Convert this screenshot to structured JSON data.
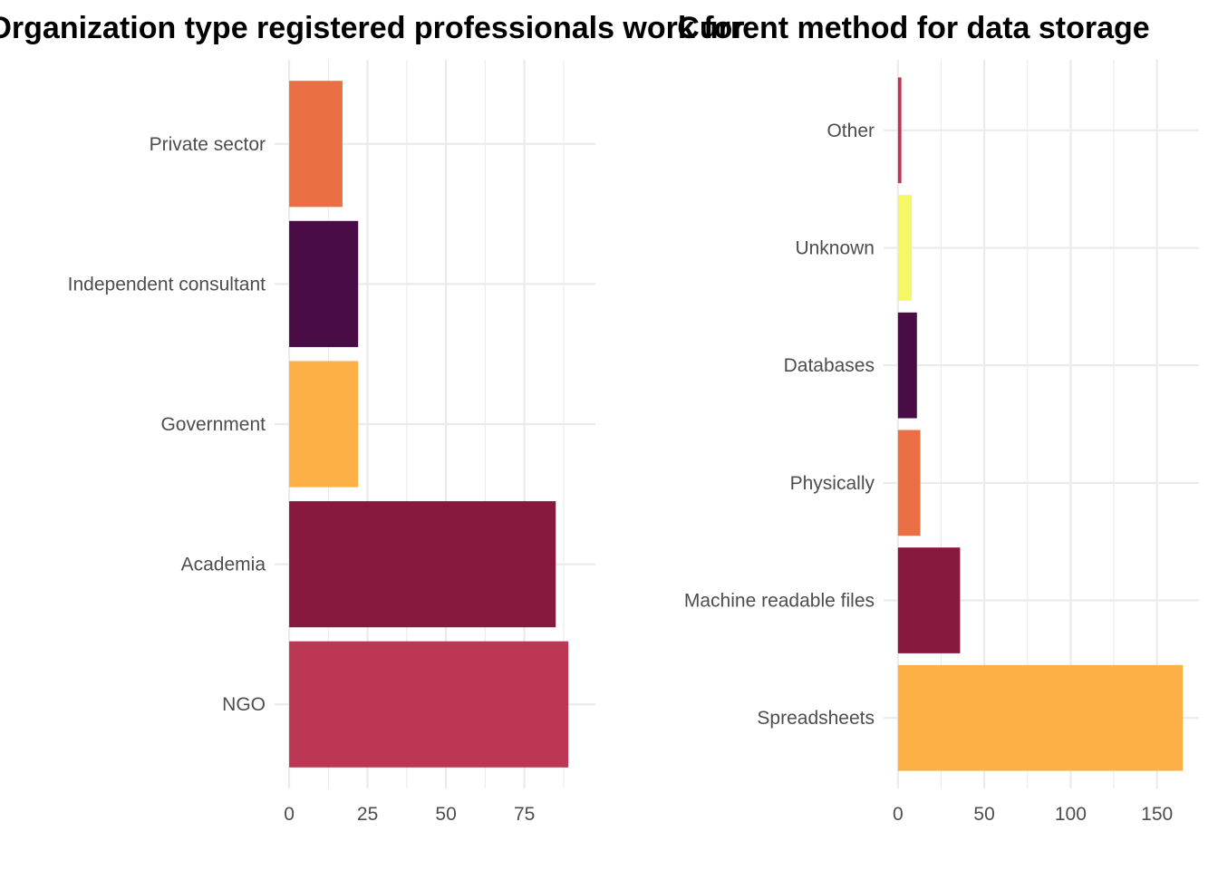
{
  "chart_data": [
    {
      "type": "bar",
      "orientation": "horizontal",
      "title": "Organization type registered professionals work for",
      "xlabel": "",
      "ylabel": "",
      "categories": [
        "NGO",
        "Academia",
        "Government",
        "Independent consultant",
        "Private sector"
      ],
      "values": [
        89,
        85,
        22,
        22,
        17
      ],
      "colors": [
        "#BB3754",
        "#87193F",
        "#FCB045",
        "#4A0C46",
        "#EB6F44"
      ],
      "xlim": [
        0,
        93
      ],
      "xticks": [
        0,
        25,
        50,
        75
      ],
      "grid": true,
      "legend": "none"
    },
    {
      "type": "bar",
      "orientation": "horizontal",
      "title": "Current method for data storage",
      "xlabel": "",
      "ylabel": "",
      "categories": [
        "Spreadsheets",
        "Machine readable files",
        "Physically",
        "Databases",
        "Unknown",
        "Other"
      ],
      "values": [
        165,
        36,
        13,
        11,
        8,
        2
      ],
      "colors": [
        "#FCB045",
        "#87193F",
        "#EB6F44",
        "#4A0C46",
        "#F5F766",
        "#BB3754"
      ],
      "xlim": [
        0,
        166
      ],
      "xticks": [
        0,
        50,
        100,
        150
      ],
      "grid": true,
      "legend": "none"
    }
  ]
}
